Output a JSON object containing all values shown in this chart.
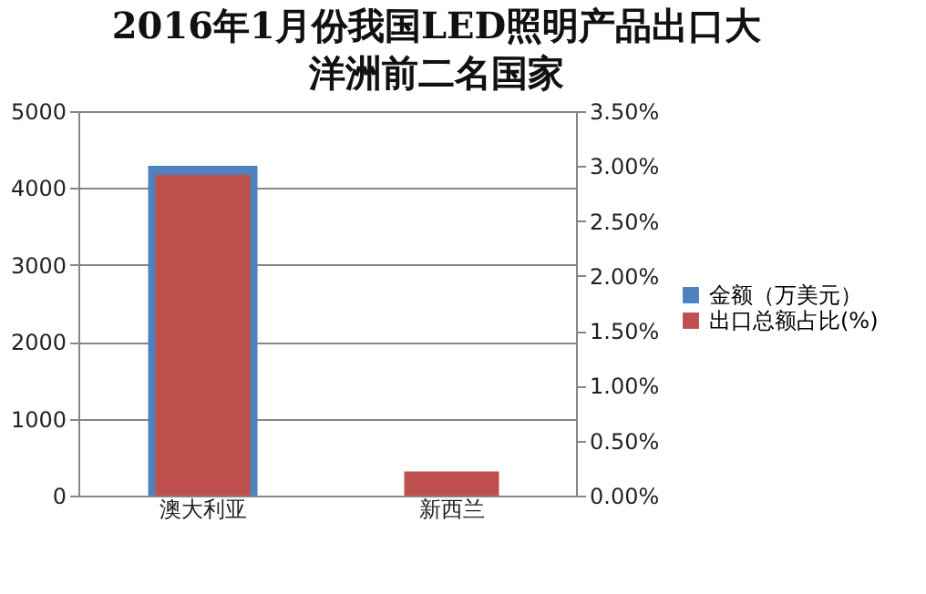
{
  "chart_data": {
    "type": "bar",
    "title": "2016年1月份我国LED照明产品出口大洋洲前二名国家",
    "categories": [
      "澳大利亚",
      "新西兰"
    ],
    "series": [
      {
        "name": "金额（万美元）",
        "color": "#4f81bd",
        "values": [
          4290,
          null
        ]
      },
      {
        "name": "出口总额占比(%)",
        "color": "#c0504d",
        "values": [
          2.92,
          0.22
        ],
        "axis": "y2"
      }
    ],
    "ylim": [
      0,
      5000
    ],
    "yticks": [
      0,
      1000,
      2000,
      3000,
      4000,
      5000
    ],
    "y2lim": [
      0,
      3.5
    ],
    "y2ticks": [
      {
        "value": 0,
        "label": "0.00%"
      },
      {
        "value": 0.5,
        "label": "0.50%"
      },
      {
        "value": 1,
        "label": "1.00%"
      },
      {
        "value": 1.5,
        "label": "1.50%"
      },
      {
        "value": 2,
        "label": "2.00%"
      },
      {
        "value": 2.5,
        "label": "2.50%"
      },
      {
        "value": 3,
        "label": "3.00%"
      },
      {
        "value": 3.5,
        "label": "3.50%"
      }
    ],
    "grid": "y",
    "legend": "right"
  }
}
